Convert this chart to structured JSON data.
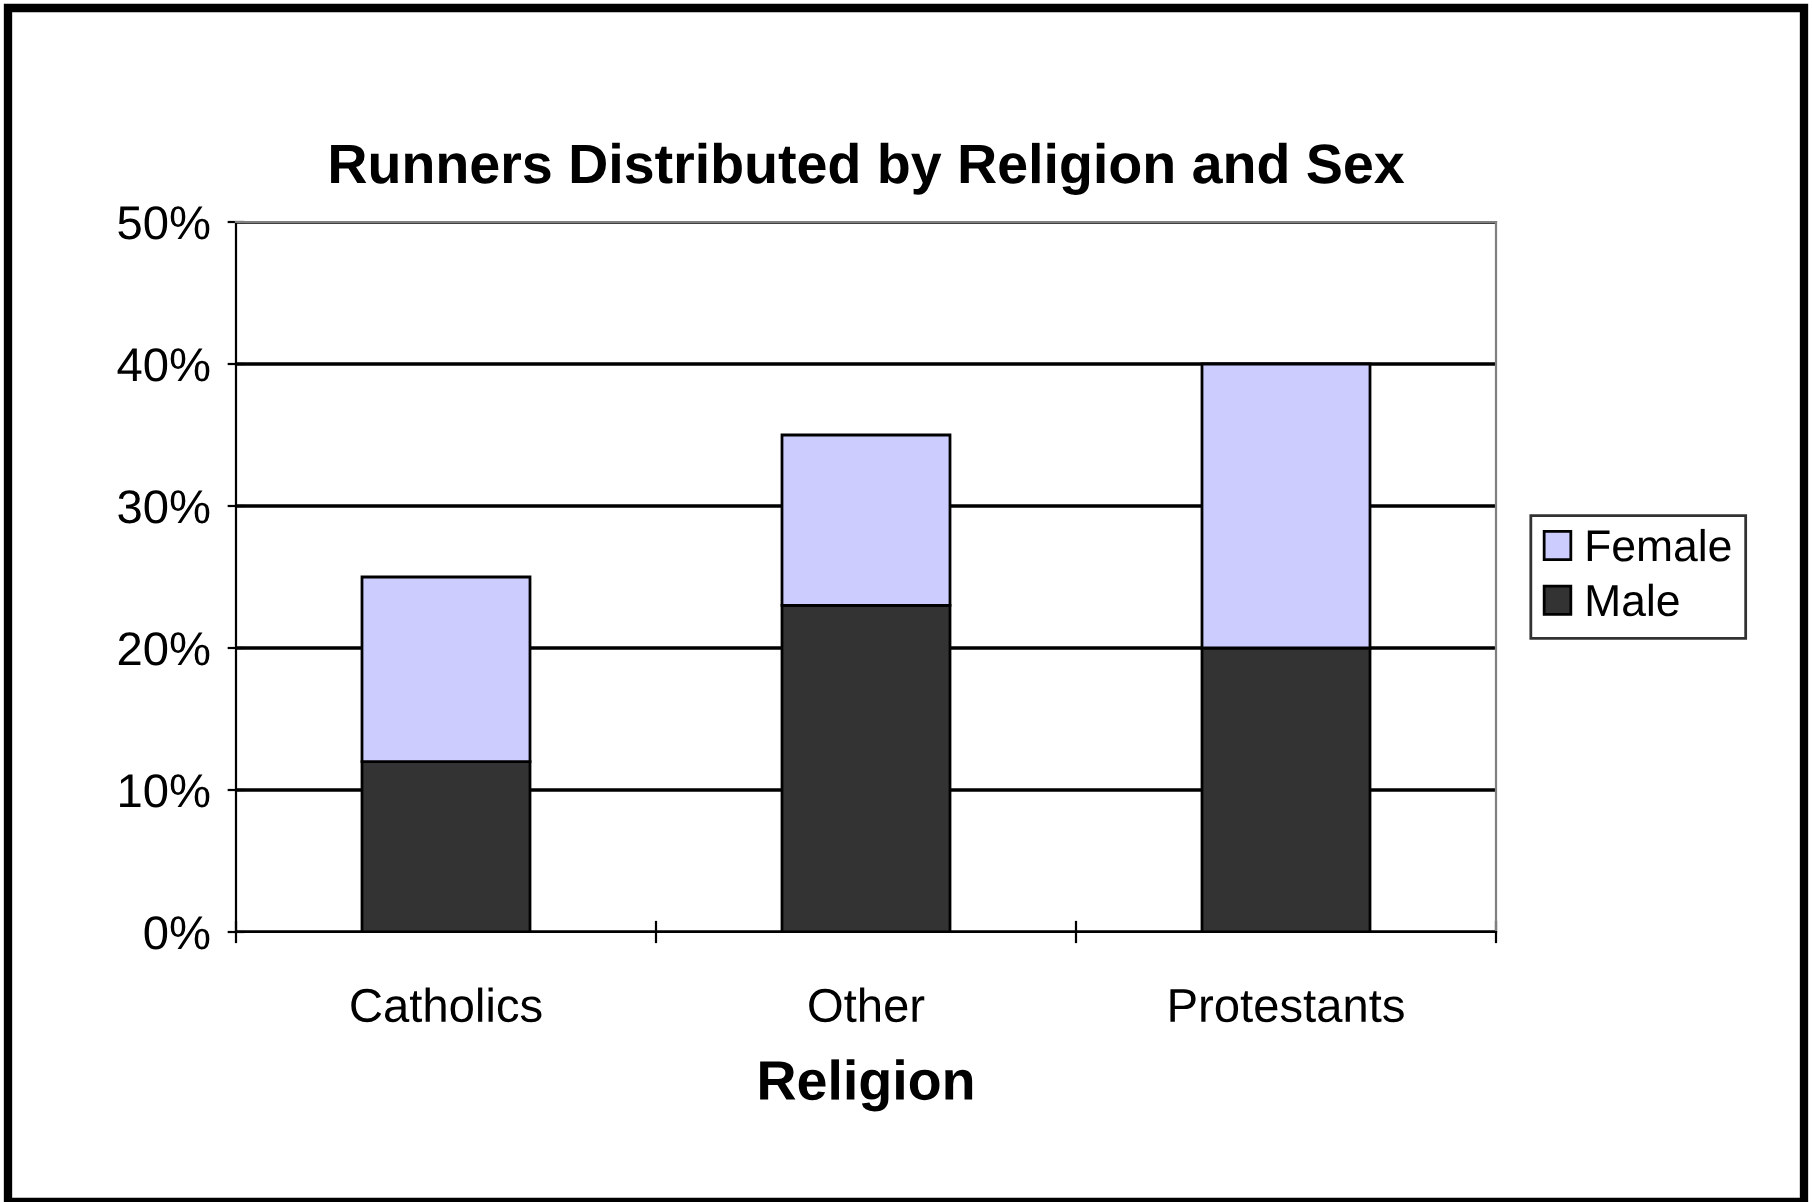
{
  "chart_data": {
    "type": "bar",
    "title": "Runners Distributed by Religion and Sex",
    "xlabel": "Religion",
    "categories": [
      "Catholics",
      "Other",
      "Protestants"
    ],
    "series": [
      {
        "name": "Male",
        "color": "#333333",
        "values": [
          12,
          23,
          20
        ]
      },
      {
        "name": "Female",
        "color": "#ccccff",
        "values": [
          13,
          12,
          20
        ]
      }
    ],
    "stacked": true,
    "ylim": [
      0,
      50
    ],
    "yticks": [
      {
        "value": 0,
        "label": "0%"
      },
      {
        "value": 10,
        "label": "10%"
      },
      {
        "value": 20,
        "label": "20%"
      },
      {
        "value": 30,
        "label": "30%"
      },
      {
        "value": 40,
        "label": "40%"
      },
      {
        "value": 50,
        "label": "50%"
      }
    ],
    "grid": "y",
    "legend": "right"
  }
}
